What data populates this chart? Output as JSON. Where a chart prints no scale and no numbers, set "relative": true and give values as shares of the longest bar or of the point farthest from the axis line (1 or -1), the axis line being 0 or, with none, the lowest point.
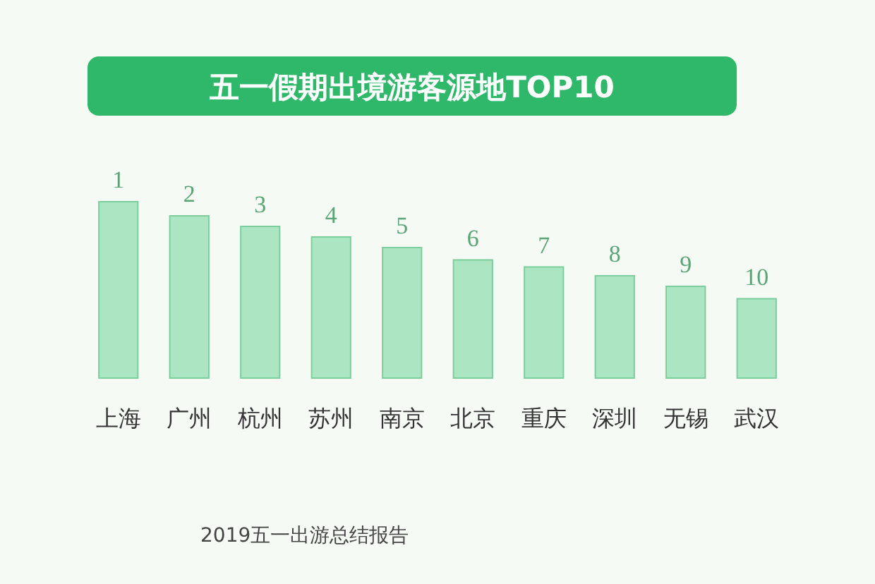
{
  "chart_data": {
    "type": "bar",
    "title": "五一假期出境游客源地TOP10",
    "categories": [
      "上海",
      "广州",
      "杭州",
      "苏州",
      "南京",
      "北京",
      "重庆",
      "深圳",
      "无锡",
      "武汉"
    ],
    "values": [
      1,
      0.92,
      0.86,
      0.8,
      0.74,
      0.67,
      0.63,
      0.58,
      0.52,
      0.45
    ],
    "relative": true,
    "color": "#9fe0b8",
    "annotations": [
      {
        "text": "1",
        "x": "上海",
        "y": 1
      },
      {
        "text": "2",
        "x": "广州",
        "y": 0.92
      },
      {
        "text": "3",
        "x": "杭州",
        "y": 0.86
      },
      {
        "text": "4",
        "x": "苏州",
        "y": 0.8
      },
      {
        "text": "5",
        "x": "南京",
        "y": 0.74
      },
      {
        "text": "6",
        "x": "北京",
        "y": 0.67
      },
      {
        "text": "7",
        "x": "重庆",
        "y": 0.63
      },
      {
        "text": "8",
        "x": "深圳",
        "y": 0.58
      },
      {
        "text": "9",
        "x": "无锡",
        "y": 0.52
      },
      {
        "text": "10",
        "x": "武汉",
        "y": 0.45
      },
      "2019五一出游总结报告"
    ]
  }
}
